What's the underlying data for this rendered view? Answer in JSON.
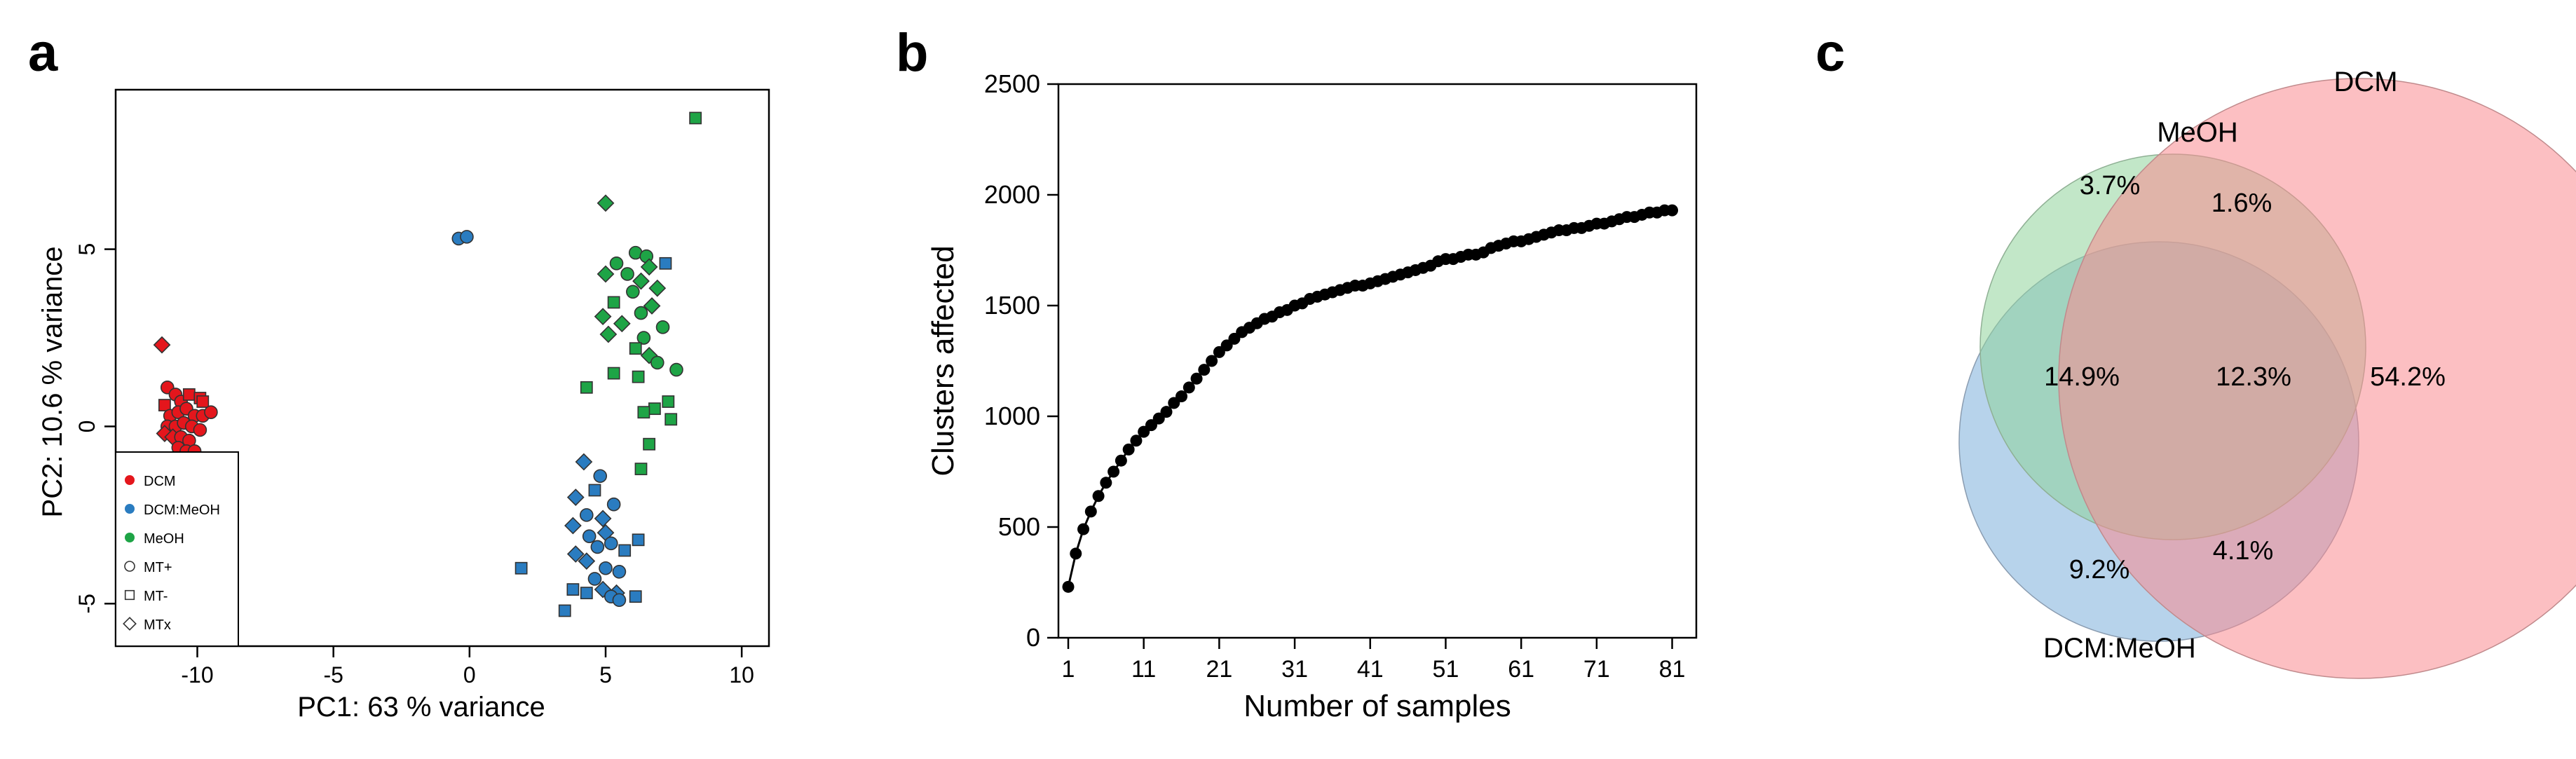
{
  "panels": [
    {
      "letter": "a"
    },
    {
      "letter": "b"
    },
    {
      "letter": "c"
    }
  ],
  "chart_data": [
    {
      "panel": "a",
      "type": "scatter",
      "xlabel": "PC1: 63 % variance",
      "ylabel": "PC2: 10.6 % variance",
      "xlim": [
        -13,
        11
      ],
      "ylim": [
        -6.2,
        9.5
      ],
      "xticks": [
        -10,
        -5,
        0,
        5,
        10
      ],
      "yticks": [
        -5,
        0,
        5
      ],
      "legend": {
        "placement": "bottom-left",
        "entries": [
          {
            "label": "DCM",
            "kind": "color",
            "color": "#e4161c"
          },
          {
            "label": "DCM:MeOH",
            "kind": "color",
            "color": "#2a7cc0"
          },
          {
            "label": "MeOH",
            "kind": "color",
            "color": "#1ea446"
          },
          {
            "label": "MT+",
            "kind": "shape",
            "shape": "circle"
          },
          {
            "label": "MT-",
            "kind": "shape",
            "shape": "square"
          },
          {
            "label": "MTx",
            "kind": "shape",
            "shape": "diamond"
          }
        ]
      },
      "series": [
        {
          "group": "DCM",
          "color": "#e4161c",
          "points": [
            [
              -11.3,
              2.3,
              "diamond"
            ],
            [
              -11.1,
              1.1,
              "circle"
            ],
            [
              -10.8,
              0.9,
              "circle"
            ],
            [
              -11.2,
              0.6,
              "square"
            ],
            [
              -10.6,
              0.7,
              "circle"
            ],
            [
              -10.3,
              0.9,
              "square"
            ],
            [
              -9.9,
              0.8,
              "square"
            ],
            [
              -9.8,
              0.7,
              "square"
            ],
            [
              -11.0,
              0.3,
              "circle"
            ],
            [
              -10.7,
              0.4,
              "circle"
            ],
            [
              -10.4,
              0.5,
              "circle"
            ],
            [
              -10.1,
              0.3,
              "circle"
            ],
            [
              -9.8,
              0.3,
              "circle"
            ],
            [
              -9.5,
              0.4,
              "circle"
            ],
            [
              -11.1,
              0.0,
              "circle"
            ],
            [
              -10.8,
              0.0,
              "circle"
            ],
            [
              -10.5,
              0.1,
              "circle"
            ],
            [
              -10.2,
              0.0,
              "circle"
            ],
            [
              -9.9,
              -0.1,
              "circle"
            ],
            [
              -11.2,
              -0.2,
              "diamond"
            ],
            [
              -10.9,
              -0.3,
              "diamond"
            ],
            [
              -10.6,
              -0.3,
              "circle"
            ],
            [
              -10.3,
              -0.4,
              "circle"
            ],
            [
              -10.7,
              -0.6,
              "circle"
            ],
            [
              -10.4,
              -0.7,
              "circle"
            ],
            [
              -10.1,
              -0.7,
              "circle"
            ],
            [
              -10.5,
              -0.9,
              "circle"
            ],
            [
              -10.2,
              -1.0,
              "circle"
            ],
            [
              -10.0,
              -1.1,
              "circle"
            ],
            [
              -10.6,
              -1.1,
              "circle"
            ]
          ]
        },
        {
          "group": "DCM:MeOH",
          "color": "#2a7cc0",
          "points": [
            [
              -0.4,
              5.3,
              "circle"
            ],
            [
              -0.1,
              5.35,
              "circle"
            ],
            [
              4.2,
              -1.0,
              "diamond"
            ],
            [
              4.8,
              -1.4,
              "circle"
            ],
            [
              3.9,
              -2.0,
              "diamond"
            ],
            [
              4.6,
              -1.8,
              "square"
            ],
            [
              4.3,
              -2.5,
              "circle"
            ],
            [
              3.8,
              -2.8,
              "diamond"
            ],
            [
              4.9,
              -2.6,
              "diamond"
            ],
            [
              5.3,
              -2.2,
              "circle"
            ],
            [
              5.0,
              -3.0,
              "diamond"
            ],
            [
              4.4,
              -3.1,
              "circle"
            ],
            [
              3.9,
              -3.6,
              "diamond"
            ],
            [
              4.7,
              -3.4,
              "circle"
            ],
            [
              5.2,
              -3.3,
              "circle"
            ],
            [
              5.7,
              -3.5,
              "square"
            ],
            [
              4.3,
              -3.8,
              "diamond"
            ],
            [
              5.0,
              -4.0,
              "circle"
            ],
            [
              5.5,
              -4.1,
              "circle"
            ],
            [
              6.2,
              -3.2,
              "square"
            ],
            [
              4.6,
              -4.3,
              "circle"
            ],
            [
              3.8,
              -4.6,
              "square"
            ],
            [
              4.3,
              -4.7,
              "square"
            ],
            [
              4.9,
              -4.6,
              "diamond"
            ],
            [
              5.4,
              -4.7,
              "diamond"
            ],
            [
              5.2,
              -4.8,
              "circle"
            ],
            [
              5.5,
              -4.9,
              "circle"
            ],
            [
              6.1,
              -4.8,
              "square"
            ],
            [
              3.5,
              -5.2,
              "square"
            ],
            [
              1.9,
              -4.0,
              "square"
            ],
            [
              7.2,
              4.6,
              "square"
            ]
          ]
        },
        {
          "group": "MeOH",
          "color": "#1ea446",
          "points": [
            [
              8.3,
              8.7,
              "square"
            ],
            [
              5.0,
              6.3,
              "diamond"
            ],
            [
              5.4,
              4.6,
              "circle"
            ],
            [
              5.0,
              4.3,
              "diamond"
            ],
            [
              6.1,
              4.9,
              "circle"
            ],
            [
              6.5,
              4.8,
              "circle"
            ],
            [
              6.6,
              4.5,
              "diamond"
            ],
            [
              5.8,
              4.3,
              "circle"
            ],
            [
              6.3,
              4.1,
              "diamond"
            ],
            [
              6.9,
              3.9,
              "diamond"
            ],
            [
              6.0,
              3.8,
              "circle"
            ],
            [
              5.3,
              3.5,
              "square"
            ],
            [
              6.7,
              3.4,
              "diamond"
            ],
            [
              4.9,
              3.1,
              "diamond"
            ],
            [
              6.3,
              3.2,
              "circle"
            ],
            [
              5.6,
              2.9,
              "diamond"
            ],
            [
              7.1,
              2.8,
              "circle"
            ],
            [
              5.1,
              2.6,
              "diamond"
            ],
            [
              6.4,
              2.5,
              "circle"
            ],
            [
              6.1,
              2.2,
              "square"
            ],
            [
              6.6,
              2.0,
              "diamond"
            ],
            [
              6.9,
              1.8,
              "circle"
            ],
            [
              5.3,
              1.5,
              "square"
            ],
            [
              6.2,
              1.4,
              "square"
            ],
            [
              7.6,
              1.6,
              "circle"
            ],
            [
              4.3,
              1.1,
              "square"
            ],
            [
              7.3,
              0.7,
              "square"
            ],
            [
              6.8,
              0.5,
              "square"
            ],
            [
              7.4,
              0.2,
              "square"
            ],
            [
              6.4,
              0.4,
              "square"
            ],
            [
              6.6,
              -0.5,
              "square"
            ],
            [
              6.3,
              -1.2,
              "square"
            ]
          ]
        }
      ]
    },
    {
      "panel": "b",
      "type": "line",
      "xlabel": "Number of samples",
      "ylabel": "Clusters affected",
      "xlim": [
        1,
        81
      ],
      "ylim": [
        0,
        2500
      ],
      "xticks": [
        1,
        11,
        21,
        31,
        41,
        51,
        61,
        71,
        81
      ],
      "yticks": [
        0,
        500,
        1000,
        1500,
        2000,
        2500
      ],
      "markers": true,
      "series": [
        {
          "x": [
            1,
            2,
            3,
            4,
            5,
            6,
            7,
            8,
            9,
            10,
            11,
            12,
            13,
            14,
            15,
            16,
            17,
            18,
            19,
            20,
            21,
            22,
            23,
            24,
            25,
            26,
            27,
            28,
            29,
            30,
            31,
            32,
            33,
            34,
            35,
            36,
            37,
            38,
            39,
            40,
            41,
            42,
            43,
            44,
            45,
            46,
            47,
            48,
            49,
            50,
            51,
            52,
            53,
            54,
            55,
            56,
            57,
            58,
            59,
            60,
            61,
            62,
            63,
            64,
            65,
            66,
            67,
            68,
            69,
            70,
            71,
            72,
            73,
            74,
            75,
            76,
            77,
            78,
            79,
            80,
            81
          ],
          "y": [
            230,
            380,
            490,
            570,
            640,
            700,
            750,
            800,
            850,
            890,
            930,
            960,
            990,
            1020,
            1060,
            1090,
            1130,
            1170,
            1210,
            1250,
            1290,
            1320,
            1350,
            1380,
            1400,
            1420,
            1440,
            1450,
            1470,
            1480,
            1500,
            1510,
            1530,
            1540,
            1550,
            1560,
            1570,
            1580,
            1590,
            1590,
            1600,
            1610,
            1620,
            1630,
            1640,
            1650,
            1660,
            1670,
            1680,
            1700,
            1710,
            1710,
            1720,
            1730,
            1730,
            1740,
            1760,
            1770,
            1780,
            1790,
            1790,
            1800,
            1810,
            1820,
            1830,
            1840,
            1840,
            1850,
            1850,
            1860,
            1870,
            1870,
            1880,
            1890,
            1900,
            1900,
            1910,
            1920,
            1920,
            1930,
            1930
          ]
        }
      ]
    },
    {
      "panel": "c",
      "type": "venn",
      "sets": [
        {
          "name": "DCM",
          "color": "#f98a8f"
        },
        {
          "name": "MeOH",
          "color": "#8fd39a"
        },
        {
          "name": "DCM:MeOH",
          "color": "#8ab8de"
        }
      ],
      "regions": [
        {
          "sets": [
            "MeOH"
          ],
          "label": "3.7%"
        },
        {
          "sets": [
            "MeOH",
            "DCM"
          ],
          "label": "1.6%"
        },
        {
          "sets": [
            "MeOH",
            "DCM:MeOH"
          ],
          "label": "14.9%"
        },
        {
          "sets": [
            "DCM",
            "MeOH",
            "DCM:MeOH"
          ],
          "label": "12.3%"
        },
        {
          "sets": [
            "DCM"
          ],
          "label": "54.2%"
        },
        {
          "sets": [
            "DCM:MeOH"
          ],
          "label": "9.2%"
        },
        {
          "sets": [
            "DCM",
            "DCM:MeOH"
          ],
          "label": "4.1%"
        }
      ]
    }
  ]
}
